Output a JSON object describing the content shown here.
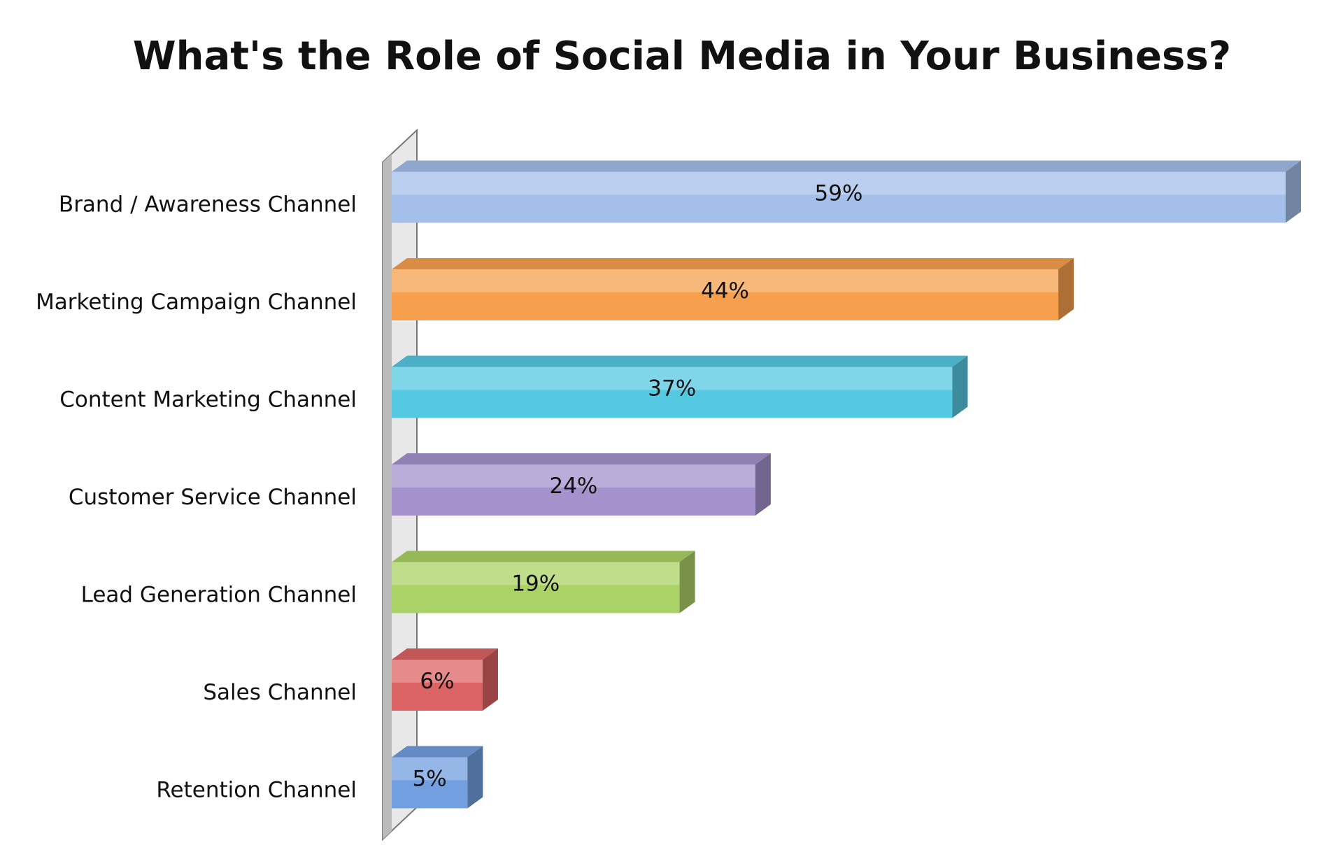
{
  "chart_data": {
    "type": "bar",
    "orientation": "horizontal",
    "title": "What's the Role of Social Media in Your Business?",
    "categories": [
      "Brand / Awareness Channel",
      "Marketing Campaign Channel",
      "Content Marketing Channel",
      "Customer Service Channel",
      "Lead Generation Channel",
      "Sales Channel",
      "Retention Channel"
    ],
    "values": [
      59,
      44,
      37,
      24,
      19,
      6,
      5
    ],
    "value_labels": [
      "59%",
      "44%",
      "37%",
      "24%",
      "19%",
      "6%",
      "5%"
    ],
    "colors": [
      "#a3bfea",
      "#f6a04e",
      "#56c9e2",
      "#a592cc",
      "#abd266",
      "#dc6464",
      "#729fe0"
    ],
    "grid": false
  }
}
